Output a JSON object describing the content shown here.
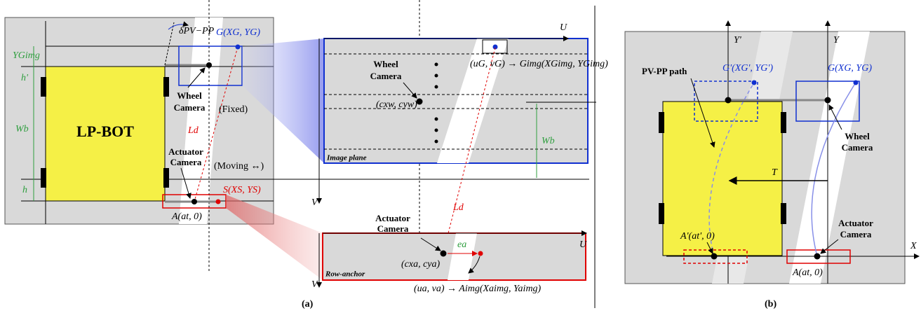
{
  "panel_a": {
    "left": {
      "delta": "δPV−PP",
      "goal": "G(XG, YG)",
      "y_g_img": "YGimg",
      "h_prime": "h'",
      "wb": "Wb",
      "h": "h",
      "robot": "LP-BOT",
      "wheel_camera": [
        "Wheel",
        "Camera"
      ],
      "fixed": "(Fixed)",
      "ld": "Ld",
      "actuator_camera": [
        "Actuator",
        "Camera"
      ],
      "moving": "(Moving ↔)",
      "s_point": "S(XS, YS)",
      "a_point": "A(at, 0)"
    },
    "image_plane": {
      "u": "U",
      "wheel_camera": [
        "Wheel",
        "Camera"
      ],
      "goal_map": "(uG, vG) → Gimg(XGimg, YGimg)",
      "center": "(cxw, cyw)",
      "label": "Image plane",
      "wb": "Wb",
      "v": "V"
    },
    "row_anchor": {
      "ld": "Ld",
      "actuator_camera": [
        "Actuator",
        "Camera"
      ],
      "u": "U",
      "center": "(cxa, cya)",
      "error": "ea",
      "label": "Row-anchor",
      "v": "V",
      "anchor_map": "(ua, va) → Aimg(Xaimg, Yaimg)"
    },
    "caption": "(a)"
  },
  "panel_b": {
    "y_prime": "Y'",
    "y": "Y",
    "path": "PV-PP path",
    "goal_prime": "G'(XG', YG')",
    "goal": "G(XG, YG)",
    "wheel_camera": [
      "Wheel",
      "Camera"
    ],
    "t": "T",
    "a_prime": "A'(at', 0)",
    "actuator_camera": [
      "Actuator",
      "Camera"
    ],
    "x": "X",
    "a_point": "A(at, 0)",
    "caption": "(b)"
  }
}
